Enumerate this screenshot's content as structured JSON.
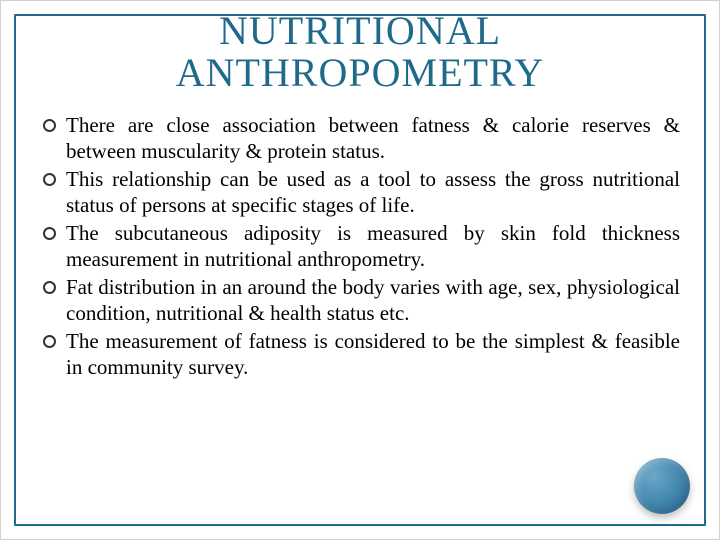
{
  "title": {
    "text": "NUTRITIONAL ANTHROPOMETRY",
    "color": "#1f6a8a",
    "fontsize": 40
  },
  "bullets": [
    "There are close association between fatness & calorie reserves & between muscularity & protein status.",
    "This relationship can be used as a tool to assess the gross nutritional status of persons at specific stages of life.",
    "The subcutaneous adiposity is measured by skin fold thickness measurement in nutritional anthropometry.",
    "Fat distribution in an around the body varies with age, sex, physiological condition, nutritional & health status etc.",
    "The measurement of fatness is considered to be the simplest & feasible in community survey."
  ],
  "style": {
    "frame_border_color": "#1f6a8a",
    "bullet_fontsize": 21,
    "bullet_color": "#000000",
    "bullet_marker_border": "#333333",
    "background_color": "#ffffff",
    "accent_circle_gradient": [
      "#6ea7c9",
      "#3f84ad",
      "#2b6f97"
    ]
  }
}
